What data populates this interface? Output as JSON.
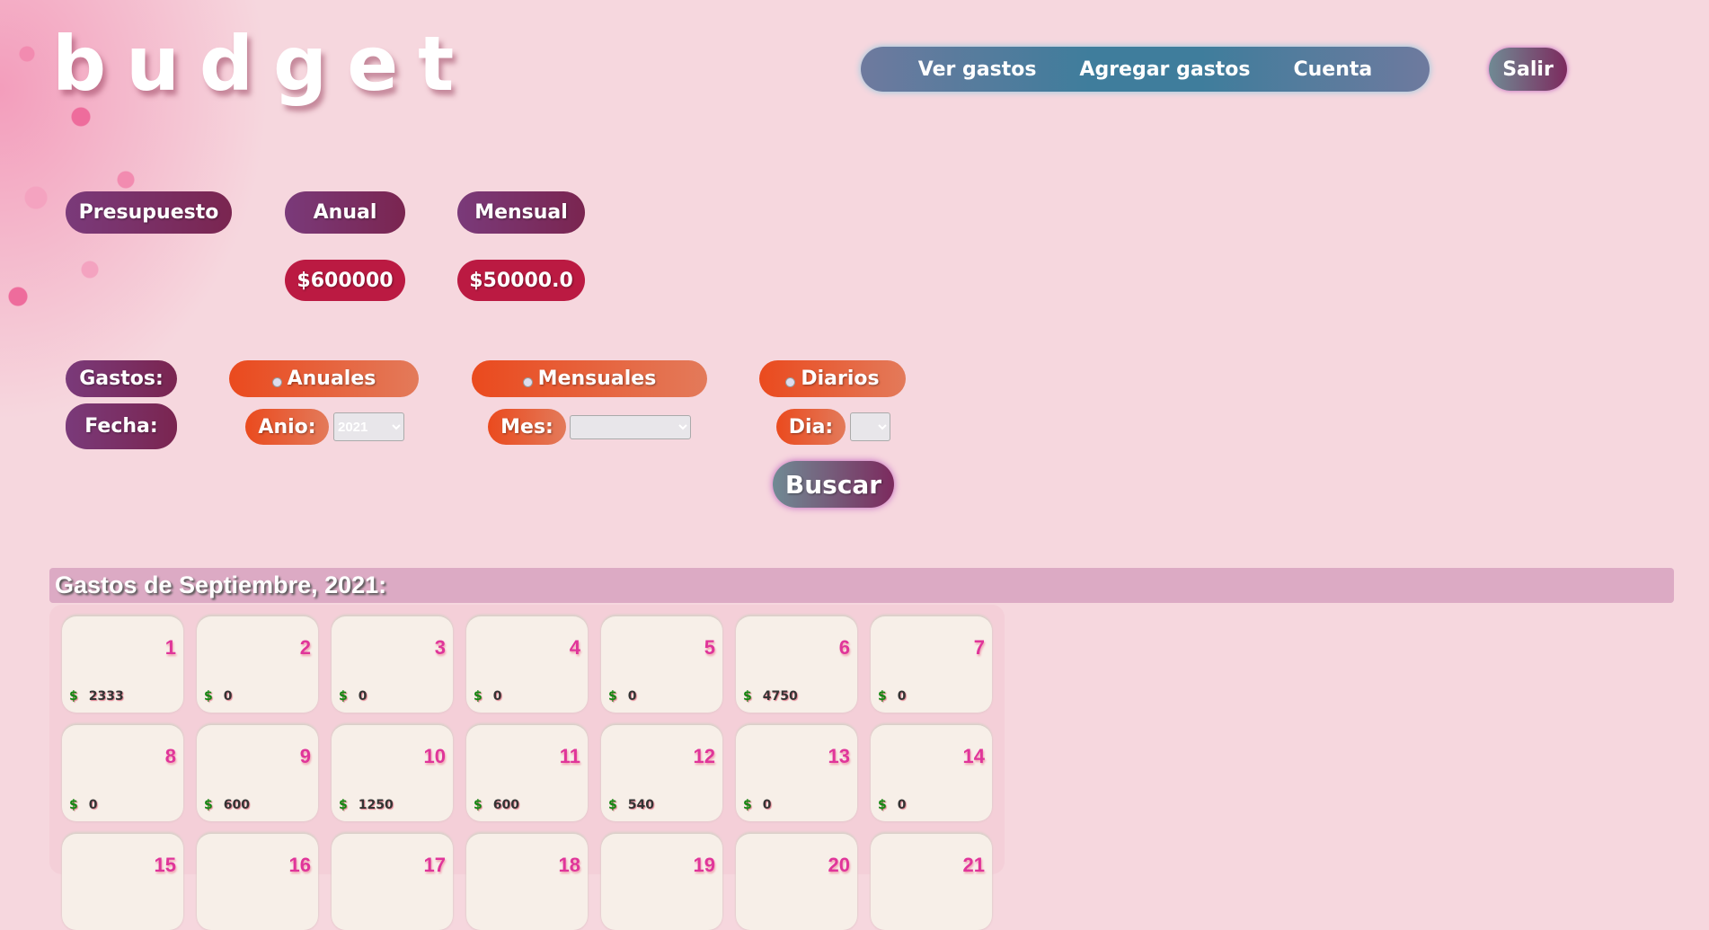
{
  "app": {
    "title": "budget"
  },
  "nav": {
    "items": [
      "Ver gastos",
      "Agregar gastos",
      "Cuenta"
    ],
    "logout": "Salir"
  },
  "presupuesto": {
    "label": "Presupuesto",
    "anual_label": "Anual",
    "mensual_label": "Mensual",
    "anual_value": "$600000",
    "mensual_value": "$50000.0"
  },
  "filters": {
    "gastos_label": "Gastos:",
    "fecha_label": "Fecha:",
    "anuales": "Anuales",
    "mensuales": "Mensuales",
    "diarios": "Diarios",
    "anio_label": "Anio:",
    "anio_value": "2021",
    "mes_label": "Mes:",
    "mes_value": "",
    "dia_label": "Dia:",
    "dia_value": "",
    "buscar": "Buscar"
  },
  "month": {
    "title": "Gastos de Septiembre, 2021:",
    "currency": "$",
    "days": [
      {
        "day": "1",
        "amount": "2333"
      },
      {
        "day": "2",
        "amount": "0"
      },
      {
        "day": "3",
        "amount": "0"
      },
      {
        "day": "4",
        "amount": "0"
      },
      {
        "day": "5",
        "amount": "0"
      },
      {
        "day": "6",
        "amount": "4750"
      },
      {
        "day": "7",
        "amount": "0"
      },
      {
        "day": "8",
        "amount": "0"
      },
      {
        "day": "9",
        "amount": "600"
      },
      {
        "day": "10",
        "amount": "1250"
      },
      {
        "day": "11",
        "amount": "600"
      },
      {
        "day": "12",
        "amount": "540"
      },
      {
        "day": "13",
        "amount": "0"
      },
      {
        "day": "14",
        "amount": "0"
      },
      {
        "day": "15"
      },
      {
        "day": "16"
      },
      {
        "day": "17"
      },
      {
        "day": "18"
      },
      {
        "day": "19"
      },
      {
        "day": "20"
      },
      {
        "day": "21"
      }
    ]
  }
}
